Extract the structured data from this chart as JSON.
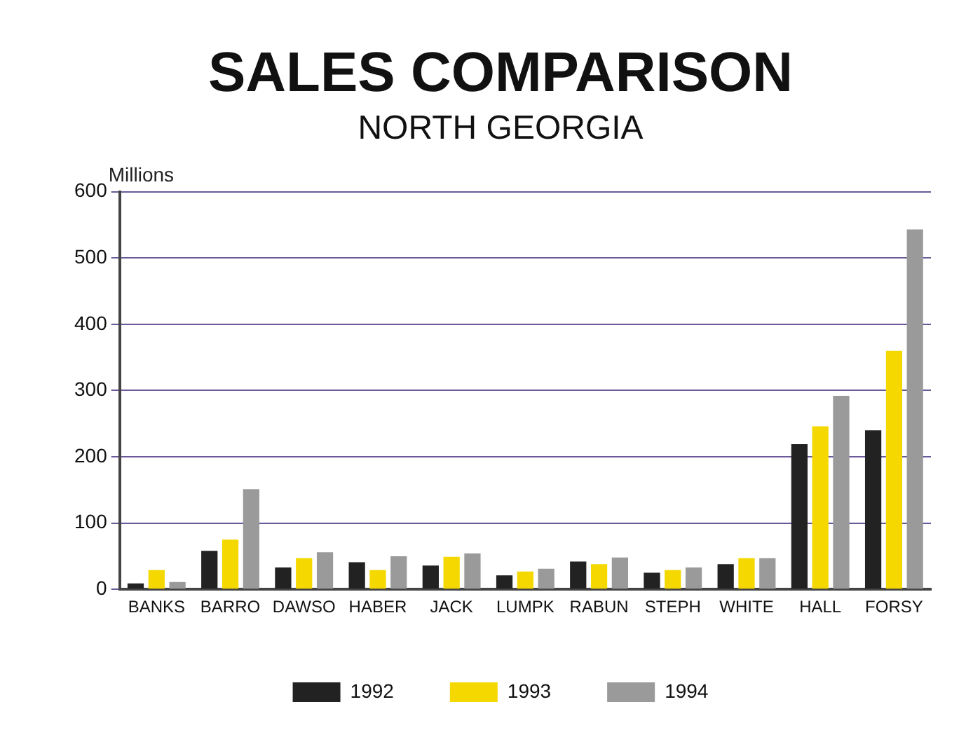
{
  "chart_data": {
    "type": "bar",
    "title": "SALES COMPARISON",
    "subtitle": "NORTH GEORGIA",
    "ylabel": "Millions",
    "categories": [
      "BANKS",
      "BARRO",
      "DAWSO",
      "HABER",
      "JACK",
      "LUMPK",
      "RABUN",
      "STEPH",
      "WHITE",
      "HALL",
      "FORSY"
    ],
    "series": [
      {
        "name": "1992",
        "color": "#222222",
        "values": [
          9,
          58,
          33,
          41,
          36,
          21,
          42,
          25,
          38,
          219,
          240
        ]
      },
      {
        "name": "1993",
        "color": "#f5d800",
        "values": [
          29,
          75,
          47,
          29,
          49,
          27,
          38,
          29,
          47,
          246,
          360
        ]
      },
      {
        "name": "1994",
        "color": "#9a9a9a",
        "values": [
          11,
          151,
          56,
          50,
          54,
          31,
          48,
          33,
          47,
          292,
          543
        ]
      }
    ],
    "ylim": [
      0,
      600
    ],
    "yticks": [
      0,
      100,
      200,
      300,
      400,
      500,
      600
    ],
    "grid": "y",
    "legend": "bottom"
  }
}
